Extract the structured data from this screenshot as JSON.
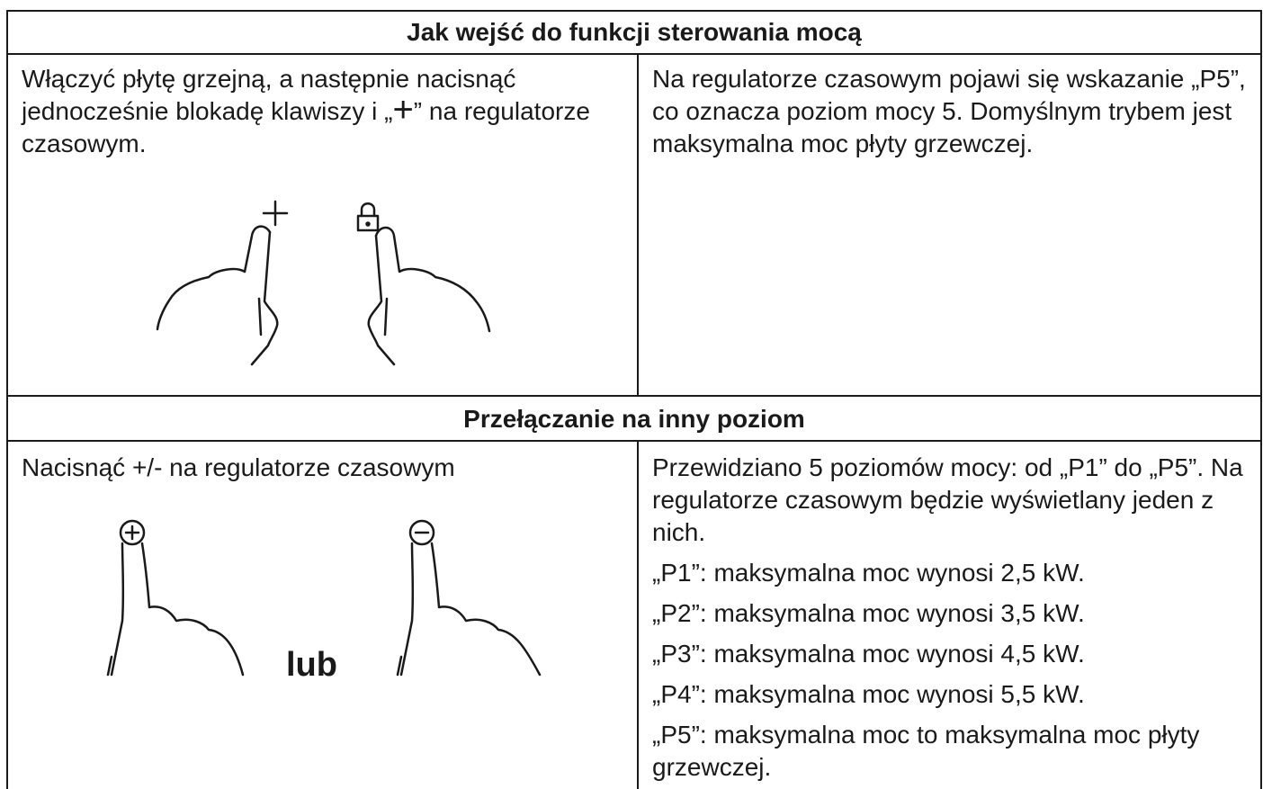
{
  "sections": [
    {
      "heading": "Jak wejść do funkcji sterowania mocą",
      "left": {
        "text_before": "Włączyć płytę grzejną, a następnie nacisnąć jednocześnie blokadę klawiszy i „",
        "symbol": "+",
        "text_after": "” na regulatorze czasowym."
      },
      "right": [
        "Na regulatorze czasowym pojawi się wskazanie „P5”, co oznacza poziom mocy 5. Domyślnym trybem jest maksymalna moc płyty grzewczej."
      ]
    },
    {
      "heading": "Przełączanie na inny poziom",
      "left": {
        "text": "Nacisnąć +/- na regulatorze czasowym",
        "label": "lub"
      },
      "right": [
        "Przewidziano 5 poziomów mocy: od „P1” do „P5”. Na regulatorze czasowym będzie wyświetlany jeden z nich.",
        "„P1”: maksymalna moc wynosi 2,5 kW.",
        "„P2”: maksymalna moc wynosi 3,5 kW.",
        "„P3”: maksymalna moc wynosi 4,5 kW.",
        "„P4”: maksymalna moc wynosi 5,5 kW.",
        "„P5”: maksymalna moc to maksymalna moc płyty grzewczej."
      ]
    }
  ]
}
